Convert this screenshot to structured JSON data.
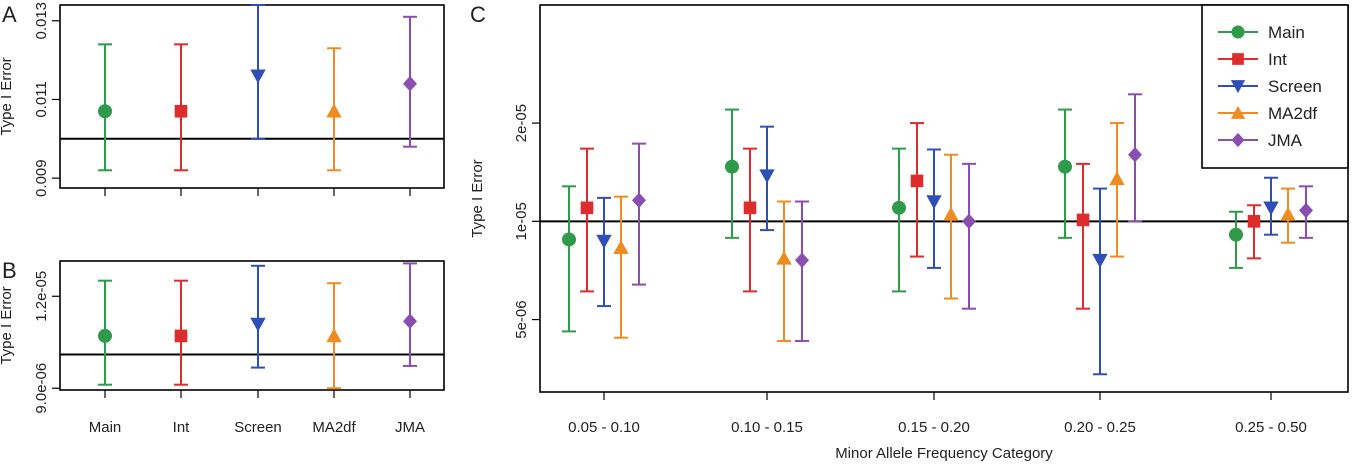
{
  "colors": {
    "Main": "#2e9a4a",
    "Int": "#dd2c2c",
    "Screen": "#2f4fb8",
    "MA2df": "#ee8c22",
    "JMA": "#8a4db0"
  },
  "chart_data": [
    {
      "panel": "A",
      "type": "scatter",
      "ylabel": "Type I Error",
      "ylim": [
        0.00875,
        0.0134
      ],
      "yticks": [
        0.009,
        0.011,
        0.013
      ],
      "ytick_labels": [
        "0.009",
        "0.011",
        "0.013"
      ],
      "reference_line": 0.01,
      "categories": [
        "Main",
        "Int",
        "Screen",
        "MA2df",
        "JMA"
      ],
      "series": [
        {
          "name": "Main",
          "marker": "circle",
          "value": 0.0107,
          "low": 0.0092,
          "high": 0.0124
        },
        {
          "name": "Int",
          "marker": "square",
          "value": 0.0107,
          "low": 0.0092,
          "high": 0.0124
        },
        {
          "name": "Screen",
          "marker": "triangle-down",
          "value": 0.0116,
          "low": 0.01,
          "high": 0.0134
        },
        {
          "name": "MA2df",
          "marker": "triangle-up",
          "value": 0.0107,
          "low": 0.0092,
          "high": 0.0123
        },
        {
          "name": "JMA",
          "marker": "diamond",
          "value": 0.0114,
          "low": 0.0098,
          "high": 0.0131
        }
      ]
    },
    {
      "panel": "B",
      "type": "scatter",
      "ylabel": "Type I Error",
      "yscale": "log",
      "ylim": [
        8.95e-06,
        1.34e-05
      ],
      "yticks": [
        9e-06,
        1.2e-05
      ],
      "ytick_labels": [
        "9.0e-06",
        "1.2e-05"
      ],
      "reference_line": 1e-05,
      "categories": [
        "Main",
        "Int",
        "Screen",
        "MA2df",
        "JMA"
      ],
      "series": [
        {
          "name": "Main",
          "marker": "circle",
          "value": 1.06e-05,
          "low": 9.1e-06,
          "high": 1.26e-05
        },
        {
          "name": "Int",
          "marker": "square",
          "value": 1.06e-05,
          "low": 9.1e-06,
          "high": 1.26e-05
        },
        {
          "name": "Screen",
          "marker": "triangle-down",
          "value": 1.1e-05,
          "low": 9.6e-06,
          "high": 1.32e-05
        },
        {
          "name": "MA2df",
          "marker": "triangle-up",
          "value": 1.06e-05,
          "low": 9e-06,
          "high": 1.25e-05
        },
        {
          "name": "JMA",
          "marker": "diamond",
          "value": 1.11e-05,
          "low": 9.65e-06,
          "high": 1.33e-05
        }
      ]
    },
    {
      "panel": "C",
      "type": "scatter",
      "ylabel": "Type I Error",
      "xlabel": "Minor Allele Frequency Category",
      "yscale": "log",
      "ylim": [
        3e-06,
        4.6e-05
      ],
      "yticks": [
        5e-06,
        1e-05,
        2e-05
      ],
      "ytick_labels": [
        "5e-06",
        "1e-05",
        "2e-05"
      ],
      "reference_line": 1e-05,
      "categories": [
        "0.05 - 0.10",
        "0.10 - 0.15",
        "0.15 - 0.20",
        "0.20 - 0.25",
        "0.25 - 0.50"
      ],
      "legend": {
        "position": "top-right",
        "entries": [
          "Main",
          "Int",
          "Screen",
          "MA2df",
          "JMA"
        ]
      },
      "series": [
        {
          "name": "Main",
          "marker": "circle",
          "values": [
            8.8e-06,
            1.47e-05,
            1.1e-05,
            1.47e-05,
            9.1e-06
          ],
          "low": [
            4.6e-06,
            8.9e-06,
            6.1e-06,
            8.9e-06,
            7.2e-06
          ],
          "high": [
            1.28e-05,
            2.2e-05,
            1.67e-05,
            2.2e-05,
            1.07e-05
          ]
        },
        {
          "name": "Int",
          "marker": "square",
          "values": [
            1.1e-05,
            1.1e-05,
            1.33e-05,
            1.01e-05,
            1e-05
          ],
          "low": [
            6.1e-06,
            6.1e-06,
            7.8e-06,
            5.4e-06,
            7.7e-06
          ],
          "high": [
            1.67e-05,
            1.67e-05,
            2e-05,
            1.5e-05,
            1.12e-05
          ]
        },
        {
          "name": "Screen",
          "marker": "triangle-down",
          "values": [
            8.7e-06,
            1.38e-05,
            1.15e-05,
            7.6e-06,
            1.1e-05
          ],
          "low": [
            5.5e-06,
            9.4e-06,
            7.2e-06,
            3.4e-06,
            9.1e-06
          ],
          "high": [
            1.18e-05,
            1.95e-05,
            1.66e-05,
            1.26e-05,
            1.36e-05
          ]
        },
        {
          "name": "MA2df",
          "marker": "triangle-up",
          "values": [
            8.3e-06,
            7.7e-06,
            1.05e-05,
            1.35e-05,
            1.05e-05
          ],
          "low": [
            4.4e-06,
            4.3e-06,
            5.8e-06,
            7.8e-06,
            8.6e-06
          ],
          "high": [
            1.19e-05,
            1.15e-05,
            1.6e-05,
            2e-05,
            1.26e-05
          ]
        },
        {
          "name": "JMA",
          "marker": "diamond",
          "values": [
            1.16e-05,
            7.6e-06,
            1e-05,
            1.6e-05,
            1.08e-05
          ],
          "low": [
            6.4e-06,
            4.3e-06,
            5.4e-06,
            1e-05,
            8.9e-06
          ],
          "high": [
            1.73e-05,
            1.15e-05,
            1.5e-05,
            2.45e-05,
            1.28e-05
          ]
        }
      ]
    }
  ]
}
